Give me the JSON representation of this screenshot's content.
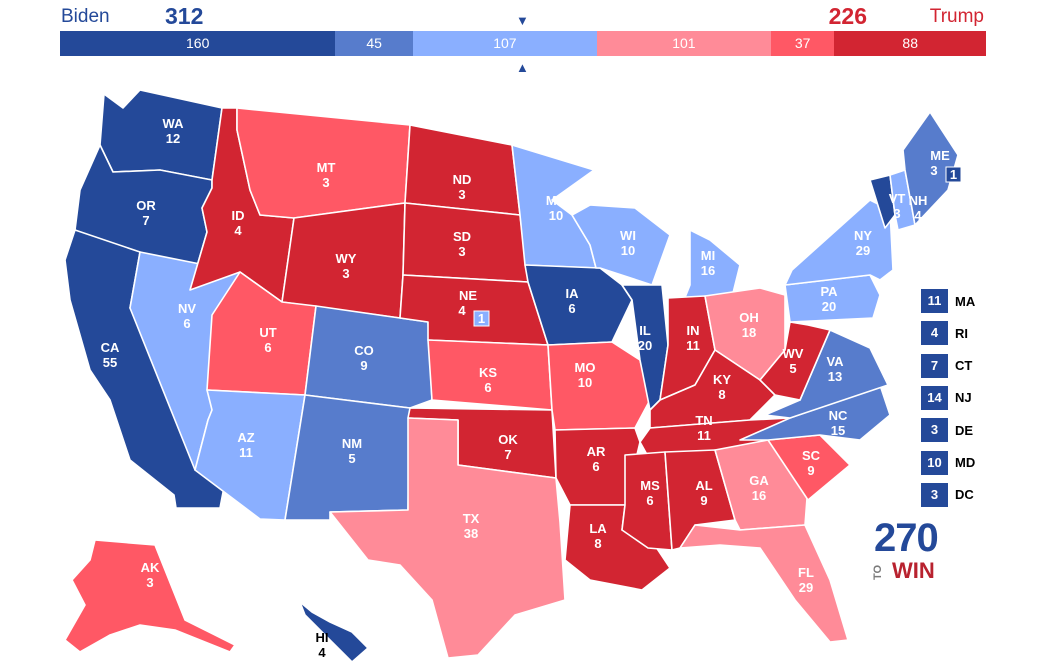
{
  "header": {
    "biden_name": "Biden",
    "biden_total": "312",
    "trump_name": "Trump",
    "trump_total": "226",
    "marker_top": "▼",
    "marker_bottom": "▲"
  },
  "colors": {
    "safe_d": "#244999",
    "likely_d": "#577ccc",
    "lean_d": "#8aafff",
    "lean_r": "#ff8b98",
    "likely_r": "#ff5865",
    "safe_r": "#d22532"
  },
  "bar": [
    {
      "value": 160,
      "label": "160",
      "rating": "safe_d"
    },
    {
      "value": 45,
      "label": "45",
      "rating": "likely_d"
    },
    {
      "value": 107,
      "label": "107",
      "rating": "lean_d"
    },
    {
      "value": 101,
      "label": "101",
      "rating": "lean_r"
    },
    {
      "value": 37,
      "label": "37",
      "rating": "likely_r"
    },
    {
      "value": 88,
      "label": "88",
      "rating": "safe_r"
    }
  ],
  "states": [
    {
      "abbr": "WA",
      "votes": "12",
      "rating": "safe_d"
    },
    {
      "abbr": "OR",
      "votes": "7",
      "rating": "safe_d"
    },
    {
      "abbr": "CA",
      "votes": "55",
      "rating": "safe_d"
    },
    {
      "abbr": "NV",
      "votes": "6",
      "rating": "lean_d"
    },
    {
      "abbr": "ID",
      "votes": "4",
      "rating": "safe_r"
    },
    {
      "abbr": "MT",
      "votes": "3",
      "rating": "likely_r"
    },
    {
      "abbr": "WY",
      "votes": "3",
      "rating": "safe_r"
    },
    {
      "abbr": "UT",
      "votes": "6",
      "rating": "likely_r"
    },
    {
      "abbr": "AZ",
      "votes": "11",
      "rating": "lean_d"
    },
    {
      "abbr": "CO",
      "votes": "9",
      "rating": "likely_d"
    },
    {
      "abbr": "NM",
      "votes": "5",
      "rating": "likely_d"
    },
    {
      "abbr": "ND",
      "votes": "3",
      "rating": "safe_r"
    },
    {
      "abbr": "SD",
      "votes": "3",
      "rating": "safe_r"
    },
    {
      "abbr": "NE",
      "votes": "4",
      "rating": "safe_r"
    },
    {
      "abbr": "KS",
      "votes": "6",
      "rating": "likely_r"
    },
    {
      "abbr": "OK",
      "votes": "7",
      "rating": "safe_r"
    },
    {
      "abbr": "TX",
      "votes": "38",
      "rating": "lean_r"
    },
    {
      "abbr": "MN",
      "votes": "10",
      "rating": "lean_d"
    },
    {
      "abbr": "IA",
      "votes": "6",
      "rating": "safe_d"
    },
    {
      "abbr": "MO",
      "votes": "10",
      "rating": "likely_r"
    },
    {
      "abbr": "AR",
      "votes": "6",
      "rating": "safe_r"
    },
    {
      "abbr": "LA",
      "votes": "8",
      "rating": "safe_r"
    },
    {
      "abbr": "WI",
      "votes": "10",
      "rating": "lean_d"
    },
    {
      "abbr": "IL",
      "votes": "20",
      "rating": "safe_d"
    },
    {
      "abbr": "MI",
      "votes": "16",
      "rating": "lean_d"
    },
    {
      "abbr": "IN",
      "votes": "11",
      "rating": "safe_r"
    },
    {
      "abbr": "OH",
      "votes": "18",
      "rating": "lean_r"
    },
    {
      "abbr": "KY",
      "votes": "8",
      "rating": "safe_r"
    },
    {
      "abbr": "TN",
      "votes": "11",
      "rating": "safe_r"
    },
    {
      "abbr": "MS",
      "votes": "6",
      "rating": "safe_r"
    },
    {
      "abbr": "AL",
      "votes": "9",
      "rating": "safe_r"
    },
    {
      "abbr": "GA",
      "votes": "16",
      "rating": "lean_r"
    },
    {
      "abbr": "FL",
      "votes": "29",
      "rating": "lean_r"
    },
    {
      "abbr": "SC",
      "votes": "9",
      "rating": "likely_r"
    },
    {
      "abbr": "NC",
      "votes": "15",
      "rating": "likely_d"
    },
    {
      "abbr": "VA",
      "votes": "13",
      "rating": "likely_d"
    },
    {
      "abbr": "WV",
      "votes": "5",
      "rating": "safe_r"
    },
    {
      "abbr": "PA",
      "votes": "20",
      "rating": "lean_d"
    },
    {
      "abbr": "NY",
      "votes": "29",
      "rating": "lean_d"
    },
    {
      "abbr": "VT",
      "votes": "3",
      "rating": "safe_d"
    },
    {
      "abbr": "NH",
      "votes": "4",
      "rating": "lean_d"
    },
    {
      "abbr": "ME",
      "votes": "3",
      "rating": "likely_d"
    },
    {
      "abbr": "AK",
      "votes": "3",
      "rating": "likely_r"
    },
    {
      "abbr": "HI",
      "votes": "4",
      "rating": "safe_d"
    }
  ],
  "districts": {
    "me_cd": "1",
    "ne_cd": "1"
  },
  "small_states": [
    {
      "votes": "11",
      "abbr": "MA"
    },
    {
      "votes": "4",
      "abbr": "RI"
    },
    {
      "votes": "7",
      "abbr": "CT"
    },
    {
      "votes": "14",
      "abbr": "NJ"
    },
    {
      "votes": "3",
      "abbr": "DE"
    },
    {
      "votes": "10",
      "abbr": "MD"
    },
    {
      "votes": "3",
      "abbr": "DC"
    }
  ],
  "logo": {
    "number": "270",
    "to": "TO",
    "win": "WIN"
  }
}
